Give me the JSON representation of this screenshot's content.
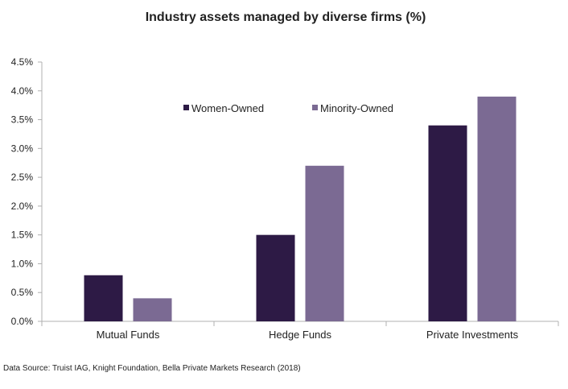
{
  "chart_data": {
    "type": "bar",
    "title": "Industry assets managed by diverse firms (%)",
    "categories": [
      "Mutual Funds",
      "Hedge Funds",
      "Private Investments"
    ],
    "series": [
      {
        "name": "Women-Owned",
        "values": [
          0.8,
          1.5,
          3.4
        ],
        "color": "#2d1a45"
      },
      {
        "name": "Minority-Owned",
        "values": [
          0.4,
          2.7,
          3.9
        ],
        "color": "#7b6a93"
      }
    ],
    "ylim": [
      0,
      4.5
    ],
    "yticks": [
      "0.0%",
      "0.5%",
      "1.0%",
      "1.5%",
      "2.0%",
      "2.5%",
      "3.0%",
      "3.5%",
      "4.0%",
      "4.5%"
    ],
    "ytick_values": [
      0,
      0.5,
      1.0,
      1.5,
      2.0,
      2.5,
      3.0,
      3.5,
      4.0,
      4.5
    ],
    "xlabel": "",
    "ylabel": "",
    "grid": false,
    "legend_position": "top-center",
    "source": "Data Source: Truist IAG, Knight Foundation, Bella Private Markets Research (2018)"
  }
}
